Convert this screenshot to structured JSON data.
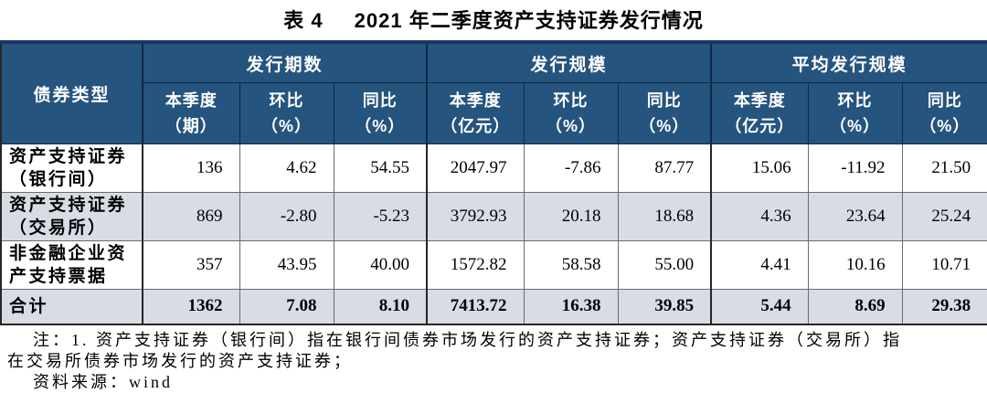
{
  "title": {
    "prefix": "表 4",
    "main": "2021 年二季度资产支持证券发行情况"
  },
  "colors": {
    "header_bg": "#25547E",
    "header_text": "#FFFFFF",
    "alt_row_bg": "#D9DCE4",
    "top_border": "#17375E",
    "outer_border": "#262626",
    "grid_border": "#6B6B6B"
  },
  "table": {
    "row_header": "债券类型",
    "groups": [
      {
        "label": "发行期数",
        "subcols": [
          {
            "label": "本季度",
            "unit": "（期）"
          },
          {
            "label": "环比",
            "unit": "（%）"
          },
          {
            "label": "同比",
            "unit": "（%）"
          }
        ]
      },
      {
        "label": "发行规模",
        "subcols": [
          {
            "label": "本季度",
            "unit": "（亿元）"
          },
          {
            "label": "环比",
            "unit": "（%）"
          },
          {
            "label": "同比",
            "unit": "（%）"
          }
        ]
      },
      {
        "label": "平均发行规模",
        "subcols": [
          {
            "label": "本季度",
            "unit": "（亿元）"
          },
          {
            "label": "环比",
            "unit": "（%）"
          },
          {
            "label": "同比",
            "unit": "（%）"
          }
        ]
      }
    ],
    "rows": [
      {
        "label": "资产支持证券（银行间）",
        "values": [
          "136",
          "4.62",
          "54.55",
          "2047.97",
          "-7.86",
          "87.77",
          "15.06",
          "-11.92",
          "21.50"
        ],
        "alt": false,
        "total": false
      },
      {
        "label": "资产支持证券（交易所）",
        "values": [
          "869",
          "-2.80",
          "-5.23",
          "3792.93",
          "20.18",
          "18.68",
          "4.36",
          "23.64",
          "25.24"
        ],
        "alt": true,
        "total": false
      },
      {
        "label": "非金融企业资产支持票据",
        "values": [
          "357",
          "43.95",
          "40.00",
          "1572.82",
          "58.58",
          "55.00",
          "4.41",
          "10.16",
          "10.71"
        ],
        "alt": false,
        "total": false
      },
      {
        "label": "合计",
        "values": [
          "1362",
          "7.08",
          "8.10",
          "7413.72",
          "16.38",
          "39.85",
          "5.44",
          "8.69",
          "29.38"
        ],
        "alt": true,
        "total": true
      }
    ]
  },
  "notes": {
    "line1": "注：1. 资产支持证券（银行间）指在银行间债券市场发行的资产支持证券；资产支持证券（交易所）指",
    "line2": "在交易所债券市场发行的资产支持证券；",
    "line3": "资料来源：wind"
  }
}
